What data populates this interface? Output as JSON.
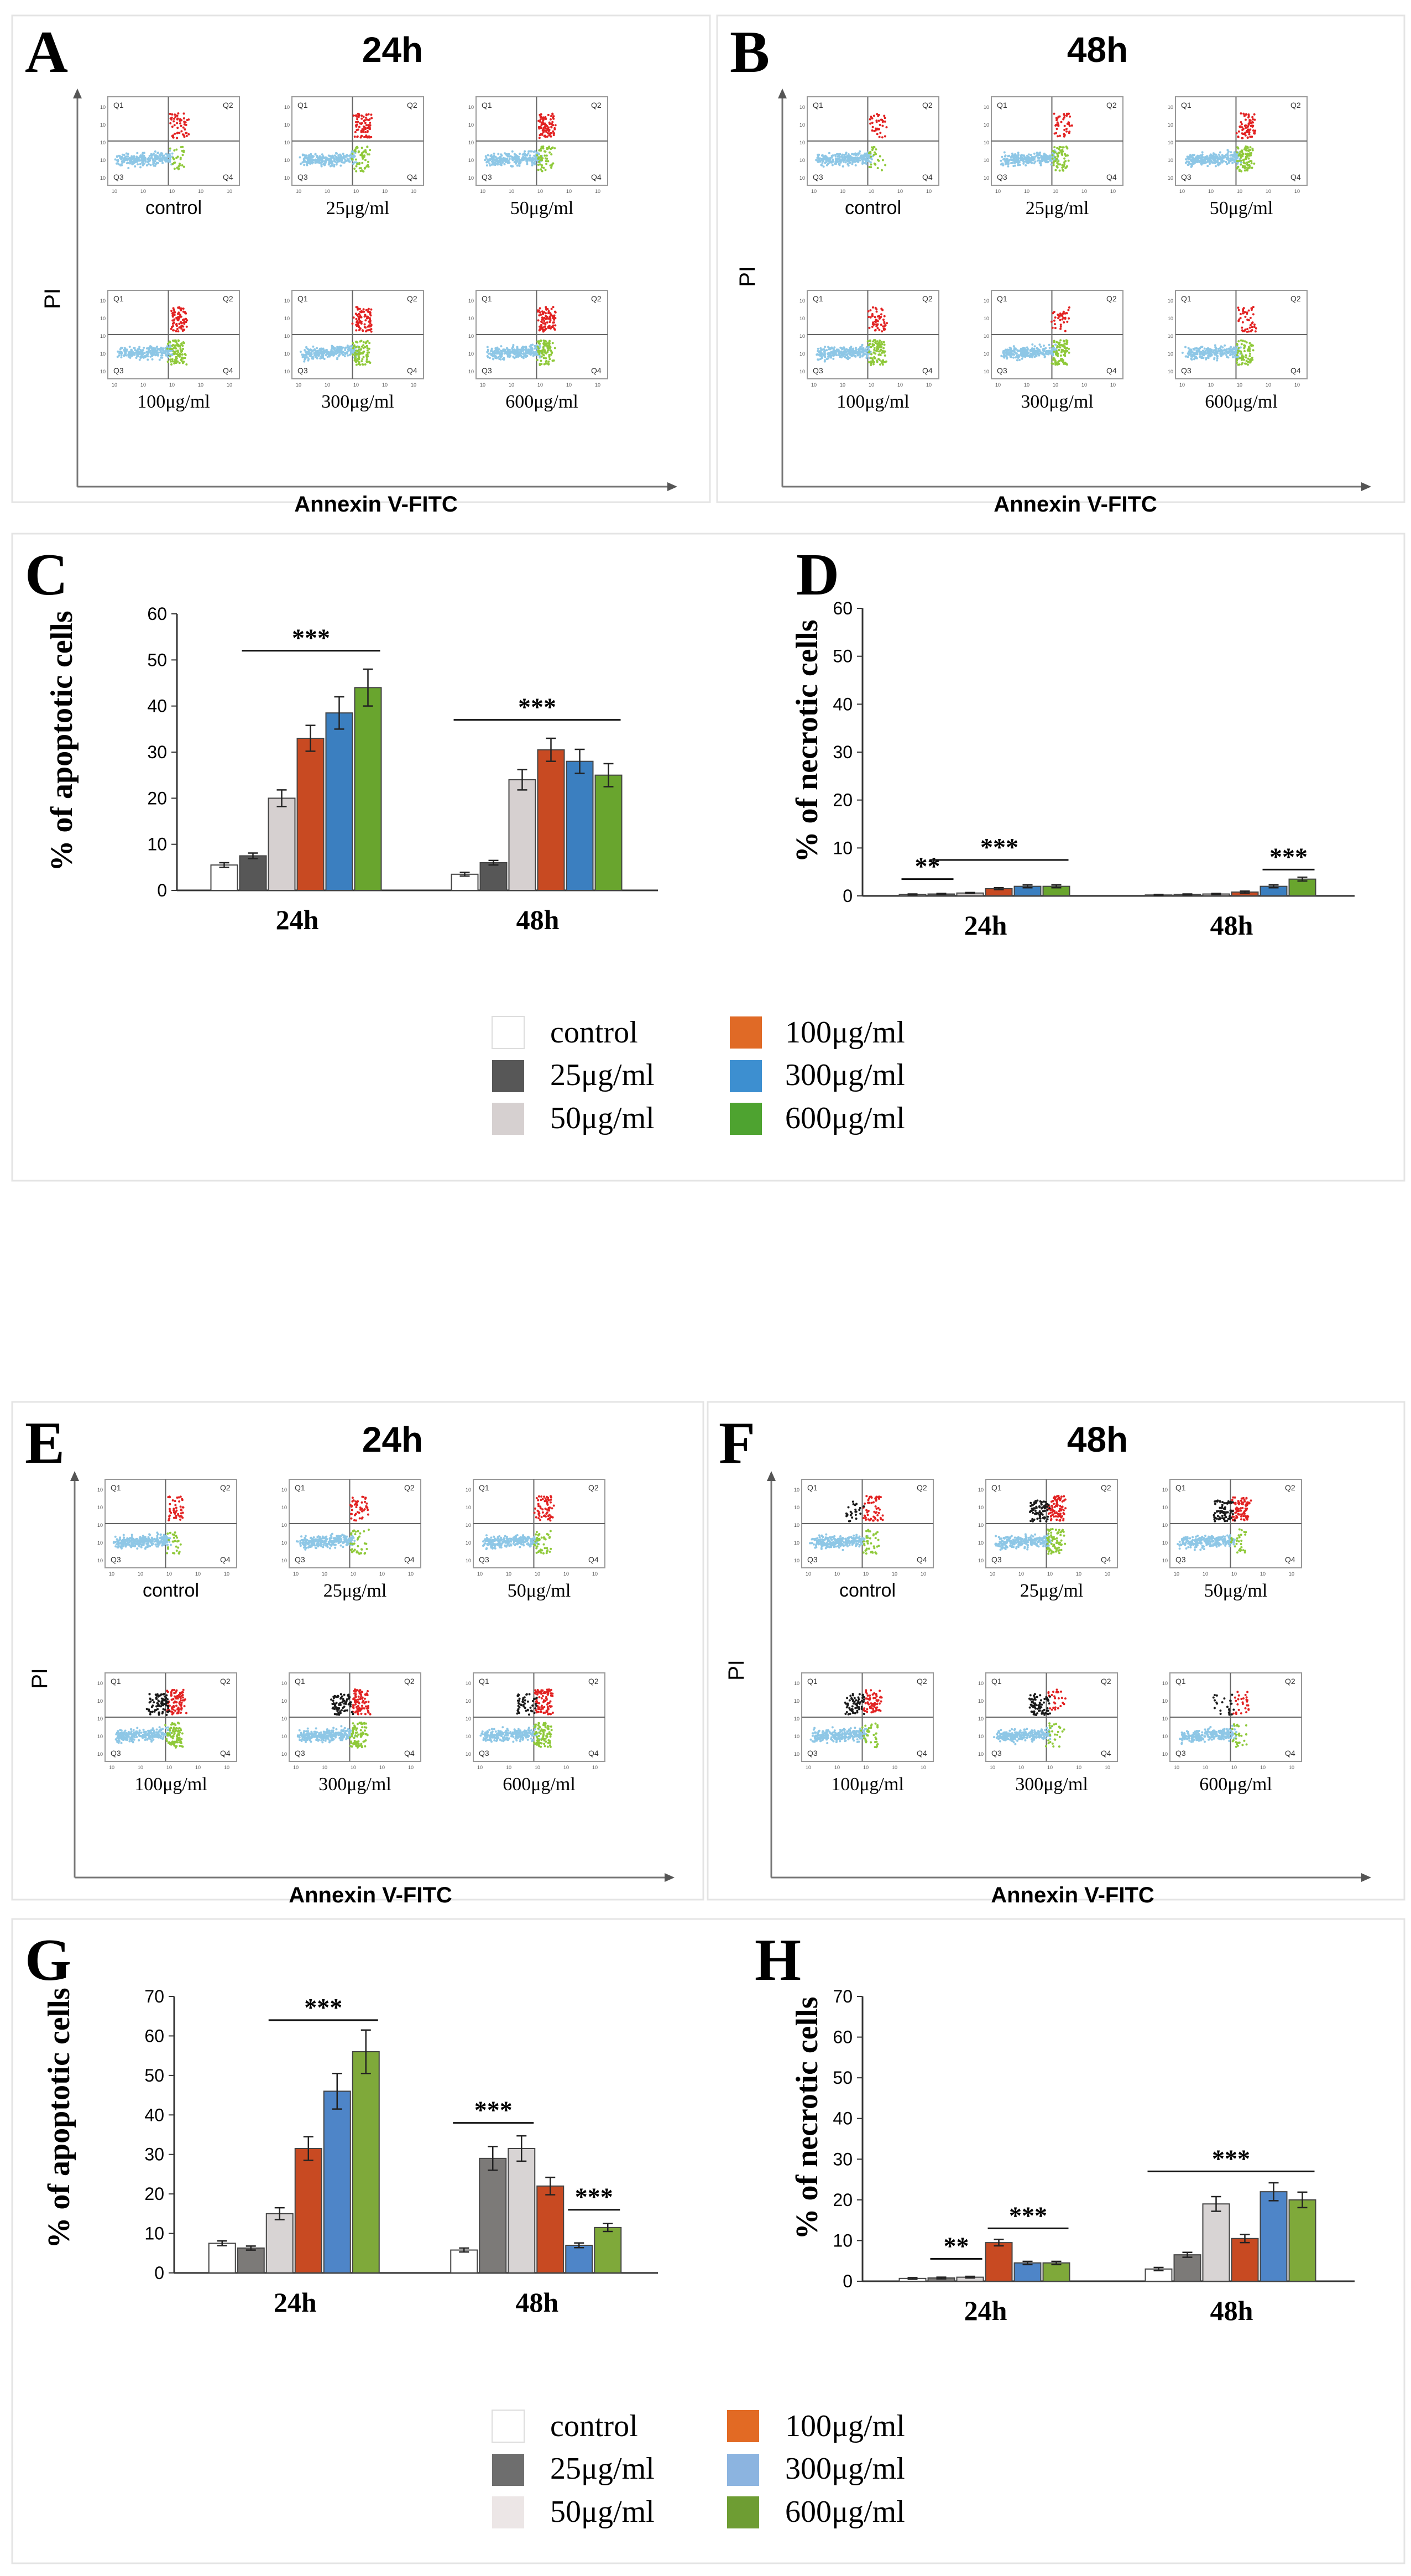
{
  "figure": {
    "top": {
      "flow": [
        {
          "letter": "A",
          "title": "24h",
          "ylabel": "PI",
          "xlabel": "Annexin V-FITC",
          "quadrants": [
            "Q1",
            "Q2",
            "Q3",
            "Q4"
          ],
          "plots": [
            {
              "label": "control",
              "red": 0.6,
              "green": 0.3,
              "black": 0.0
            },
            {
              "label": "25μg/ml",
              "red": 0.9,
              "green": 0.6,
              "black": 0.0
            },
            {
              "label": "50μg/ml",
              "red": 1.0,
              "green": 0.6,
              "black": 0.0
            },
            {
              "label": "100μg/ml",
              "red": 0.9,
              "green": 1.0,
              "black": 0.0
            },
            {
              "label": "300μg/ml",
              "red": 1.0,
              "green": 1.0,
              "black": 0.0
            },
            {
              "label": "600μg/ml",
              "red": 1.0,
              "green": 1.0,
              "black": 0.0
            }
          ]
        },
        {
          "letter": "B",
          "title": "48h",
          "ylabel": "PI",
          "xlabel": "Annexin V-FITC",
          "quadrants": [
            "Q1",
            "Q2",
            "Q3",
            "Q4"
          ],
          "plots": [
            {
              "label": "control",
              "red": 0.4,
              "green": 0.3,
              "black": 0.0
            },
            {
              "label": "25μg/ml",
              "red": 0.5,
              "green": 0.7,
              "black": 0.0
            },
            {
              "label": "50μg/ml",
              "red": 0.8,
              "green": 1.0,
              "black": 0.0
            },
            {
              "label": "100μg/ml",
              "red": 0.6,
              "green": 1.0,
              "black": 0.0
            },
            {
              "label": "300μg/ml",
              "red": 0.4,
              "green": 1.0,
              "black": 0.0
            },
            {
              "label": "600μg/ml",
              "red": 0.5,
              "green": 0.8,
              "black": 0.0
            }
          ]
        }
      ],
      "legend": {
        "control": "control",
        "c25": "25μg/ml",
        "c50": "50μg/ml",
        "c100": "100μg/ml",
        "c300": "300μg/ml",
        "c600": "600μg/ml"
      }
    },
    "bottom": {
      "flow": [
        {
          "letter": "E",
          "title": "24h",
          "ylabel": "PI",
          "xlabel": "Annexin V-FITC",
          "quadrants": [
            "Q1",
            "Q2",
            "Q3",
            "Q4"
          ],
          "plots": [
            {
              "label": "control",
              "red": 0.5,
              "green": 0.3,
              "black": 0.0
            },
            {
              "label": "25μg/ml",
              "red": 0.5,
              "green": 0.4,
              "black": 0.0
            },
            {
              "label": "50μg/ml",
              "red": 0.7,
              "green": 0.5,
              "black": 0.0
            },
            {
              "label": "100μg/ml",
              "red": 1.0,
              "green": 1.0,
              "black": 1.0
            },
            {
              "label": "300μg/ml",
              "red": 1.0,
              "green": 0.9,
              "black": 1.0
            },
            {
              "label": "600μg/ml",
              "red": 1.0,
              "green": 1.0,
              "black": 0.6
            }
          ]
        },
        {
          "letter": "F",
          "title": "48h",
          "ylabel": "PI",
          "xlabel": "Annexin V-FITC",
          "quadrants": [
            "Q1",
            "Q2",
            "Q3",
            "Q4"
          ],
          "plots": [
            {
              "label": "control",
              "red": 0.6,
              "green": 0.4,
              "black": 0.3
            },
            {
              "label": "25μg/ml",
              "red": 1.0,
              "green": 0.8,
              "black": 1.0
            },
            {
              "label": "50μg/ml",
              "red": 1.0,
              "green": 0.3,
              "black": 1.0
            },
            {
              "label": "100μg/ml",
              "red": 0.7,
              "green": 0.4,
              "black": 0.8
            },
            {
              "label": "300μg/ml",
              "red": 0.3,
              "green": 0.3,
              "black": 1.0
            },
            {
              "label": "600μg/ml",
              "red": 0.3,
              "green": 0.3,
              "black": 0.3
            }
          ]
        }
      ],
      "legend": {
        "control": "control",
        "c25": "25μg/ml",
        "c50": "50μg/ml",
        "c100": "100μg/ml",
        "c300": "300μg/ml",
        "c600": "600μg/ml"
      }
    }
  },
  "chart_data": [
    {
      "panel": "C",
      "type": "bar",
      "ylabel": "% of apoptotic cells",
      "ylim": [
        0,
        60
      ],
      "yticks": [
        0,
        10,
        20,
        30,
        40,
        50,
        60
      ],
      "categories": [
        "24h",
        "48h"
      ],
      "series": [
        {
          "name": "control",
          "values": [
            5.5,
            3.5
          ],
          "errors": [
            0.5,
            0.4
          ]
        },
        {
          "name": "25μg/ml",
          "values": [
            7.5,
            6.0
          ],
          "errors": [
            0.6,
            0.5
          ]
        },
        {
          "name": "50μg/ml",
          "values": [
            20.0,
            24.0
          ],
          "errors": [
            1.8,
            2.2
          ]
        },
        {
          "name": "100μg/ml",
          "values": [
            33.0,
            30.5
          ],
          "errors": [
            2.8,
            2.5
          ]
        },
        {
          "name": "300μg/ml",
          "values": [
            38.5,
            28.0
          ],
          "errors": [
            3.5,
            2.6
          ]
        },
        {
          "name": "600μg/ml",
          "values": [
            44.0,
            25.0
          ],
          "errors": [
            4.0,
            2.5
          ]
        }
      ],
      "annotations": [
        {
          "text": "***",
          "category": 0,
          "from": 1,
          "to": 5,
          "y": 52
        },
        {
          "text": "***",
          "category": 1,
          "from": 0,
          "to": 5,
          "y": 37
        }
      ]
    },
    {
      "panel": "D",
      "type": "bar",
      "ylabel": "% of necrotic cells",
      "ylim": [
        0,
        60
      ],
      "yticks": [
        0,
        10,
        20,
        30,
        40,
        50,
        60
      ],
      "categories": [
        "24h",
        "48h"
      ],
      "series": [
        {
          "name": "control",
          "values": [
            0.3,
            0.2
          ],
          "errors": [
            0.1,
            0.1
          ]
        },
        {
          "name": "25μg/ml",
          "values": [
            0.4,
            0.3
          ],
          "errors": [
            0.1,
            0.1
          ]
        },
        {
          "name": "50μg/ml",
          "values": [
            0.6,
            0.4
          ],
          "errors": [
            0.1,
            0.1
          ]
        },
        {
          "name": "100μg/ml",
          "values": [
            1.5,
            0.8
          ],
          "errors": [
            0.2,
            0.2
          ]
        },
        {
          "name": "300μg/ml",
          "values": [
            2.0,
            2.0
          ],
          "errors": [
            0.3,
            0.3
          ]
        },
        {
          "name": "600μg/ml",
          "values": [
            2.0,
            3.5
          ],
          "errors": [
            0.3,
            0.4
          ]
        }
      ],
      "annotations": [
        {
          "text": "**",
          "category": 0,
          "from": 0,
          "to": 1,
          "y": 3.5
        },
        {
          "text": "***",
          "category": 0,
          "from": 1,
          "to": 5,
          "y": 7.5
        },
        {
          "text": "***",
          "category": 1,
          "from": 4,
          "to": 5,
          "y": 5.5
        }
      ]
    },
    {
      "panel": "G",
      "type": "bar",
      "ylabel": "% of apoptotic cells",
      "ylim": [
        0,
        70
      ],
      "yticks": [
        0,
        10,
        20,
        30,
        40,
        50,
        60,
        70
      ],
      "categories": [
        "24h",
        "48h"
      ],
      "series": [
        {
          "name": "control",
          "values": [
            7.5,
            5.8
          ],
          "errors": [
            0.6,
            0.5
          ]
        },
        {
          "name": "25μg/ml",
          "values": [
            6.3,
            29.0
          ],
          "errors": [
            0.5,
            3.0
          ]
        },
        {
          "name": "50μg/ml",
          "values": [
            15.0,
            31.5
          ],
          "errors": [
            1.5,
            3.2
          ]
        },
        {
          "name": "100μg/ml",
          "values": [
            31.5,
            22.0
          ],
          "errors": [
            3.0,
            2.2
          ]
        },
        {
          "name": "300μg/ml",
          "values": [
            46.0,
            7.0
          ],
          "errors": [
            4.5,
            0.6
          ]
        },
        {
          "name": "600μg/ml",
          "values": [
            56.0,
            11.5
          ],
          "errors": [
            5.5,
            1.0
          ]
        }
      ],
      "annotations": [
        {
          "text": "***",
          "category": 0,
          "from": 2,
          "to": 5,
          "y": 64
        },
        {
          "text": "***",
          "category": 1,
          "from": 0,
          "to": 2,
          "y": 38
        },
        {
          "text": "***",
          "category": 1,
          "from": 4,
          "to": 5,
          "y": 16
        }
      ]
    },
    {
      "panel": "H",
      "type": "bar",
      "ylabel": "% of necrotic cells",
      "ylim": [
        0,
        70
      ],
      "yticks": [
        0,
        10,
        20,
        30,
        40,
        50,
        60,
        70
      ],
      "categories": [
        "24h",
        "48h"
      ],
      "series": [
        {
          "name": "control",
          "values": [
            0.7,
            3.0
          ],
          "errors": [
            0.2,
            0.4
          ]
        },
        {
          "name": "25μg/ml",
          "values": [
            0.8,
            6.5
          ],
          "errors": [
            0.2,
            0.6
          ]
        },
        {
          "name": "50μg/ml",
          "values": [
            1.0,
            19.0
          ],
          "errors": [
            0.2,
            1.8
          ]
        },
        {
          "name": "100μg/ml",
          "values": [
            9.5,
            10.5
          ],
          "errors": [
            0.8,
            1.0
          ]
        },
        {
          "name": "300μg/ml",
          "values": [
            4.5,
            22.0
          ],
          "errors": [
            0.4,
            2.2
          ]
        },
        {
          "name": "600μg/ml",
          "values": [
            4.5,
            20.0
          ],
          "errors": [
            0.4,
            1.9
          ]
        }
      ],
      "annotations": [
        {
          "text": "**",
          "category": 0,
          "from": 1,
          "to": 2,
          "y": 5.5
        },
        {
          "text": "***",
          "category": 0,
          "from": 3,
          "to": 5,
          "y": 13
        },
        {
          "text": "***",
          "category": 1,
          "from": 0,
          "to": 5,
          "y": 27
        }
      ]
    }
  ],
  "colors": {
    "top": [
      "#ffffff",
      "#575757",
      "#d6d0d0",
      "#c84a22",
      "#3b7fc0",
      "#69a52e"
    ],
    "bottom": [
      "#ffffff",
      "#7c7a78",
      "#d8d4d4",
      "#c84a22",
      "#4e85c8",
      "#7fa93a"
    ],
    "bottom_legend": [
      "#ffffff",
      "#6e6e6e",
      "#ece6e6",
      "#e26a24",
      "#8cb4e0",
      "#6e9d33"
    ],
    "top_legend": [
      "#ffffff",
      "#575757",
      "#d6d0d0",
      "#e06a26",
      "#3d8fd0",
      "#4ea330"
    ],
    "scatter_blue": "#8ec7e6",
    "scatter_red": "#e22222",
    "scatter_green": "#8fc93a",
    "scatter_black": "#1a1a1a"
  }
}
